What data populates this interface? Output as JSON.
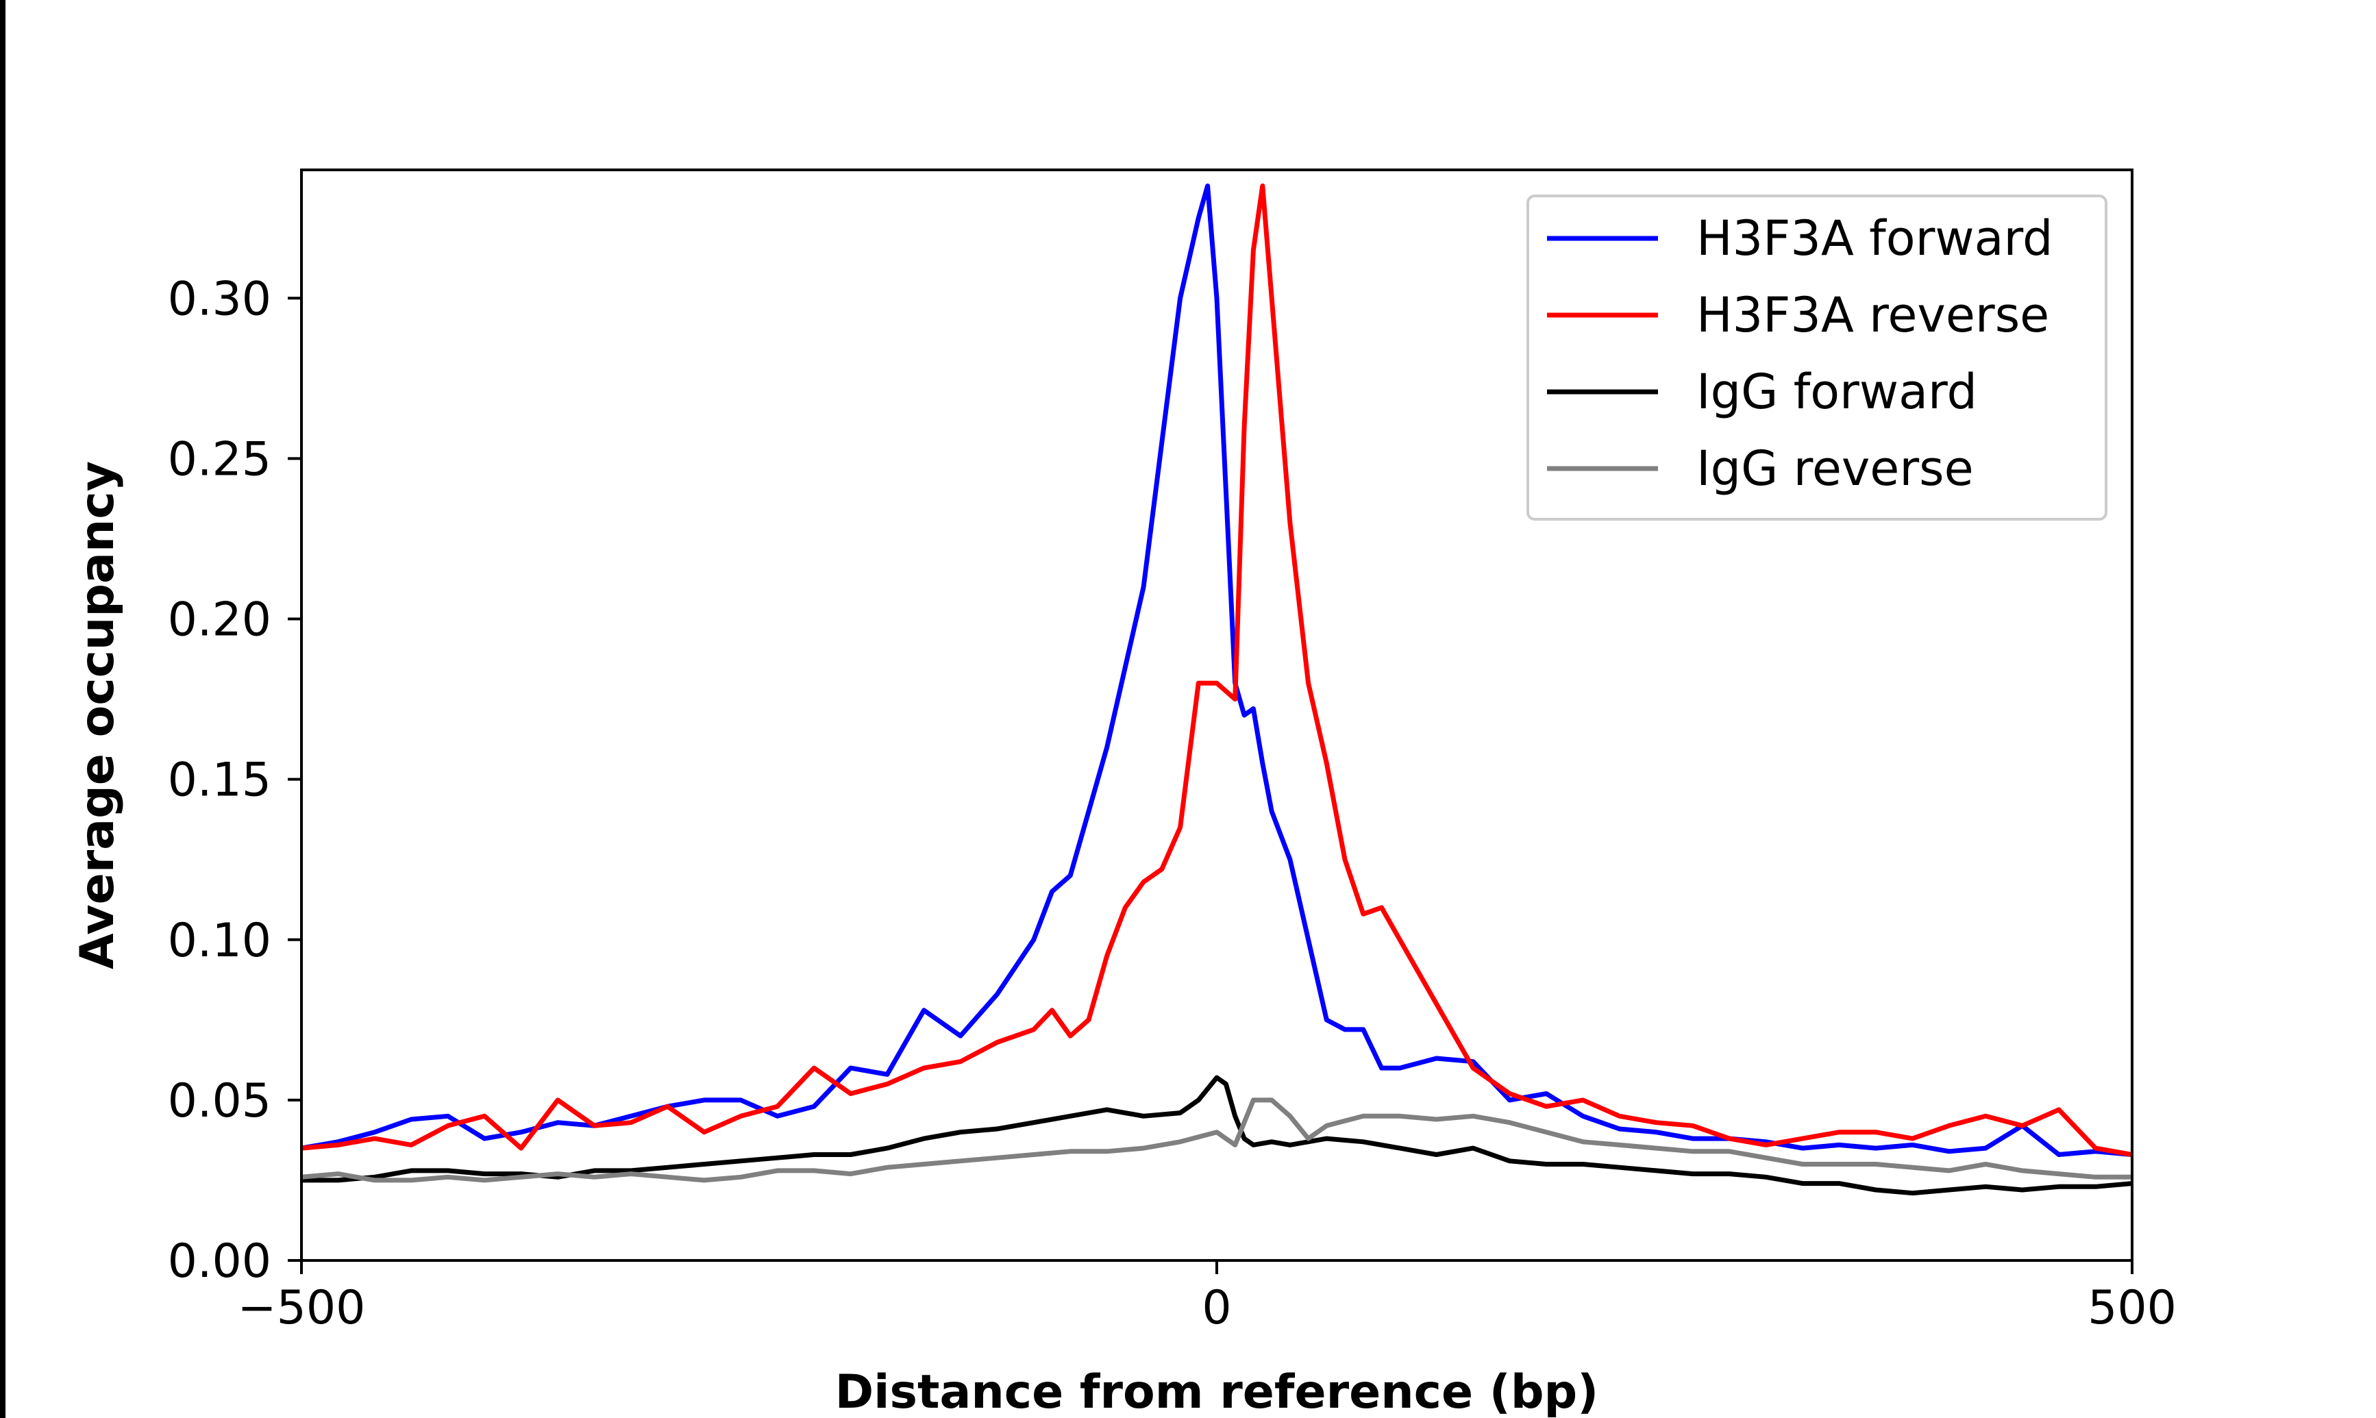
{
  "chart_data": {
    "type": "line",
    "title": "",
    "xlabel": "Distance from reference (bp)",
    "ylabel": "Average occupancy",
    "xlim": [
      -500,
      500
    ],
    "ylim": [
      0,
      0.34
    ],
    "x_ticks": [
      -500,
      0,
      500
    ],
    "x_tick_labels": [
      "−500",
      "0",
      "500"
    ],
    "y_ticks": [
      0,
      0.05,
      0.1,
      0.15,
      0.2,
      0.25,
      0.3
    ],
    "y_tick_labels": [
      "0.00",
      "0.05",
      "0.10",
      "0.15",
      "0.20",
      "0.25",
      "0.30"
    ],
    "grid": false,
    "legend_position": "top-right",
    "series": [
      {
        "name": "H3F3A forward",
        "color": "#0000ff",
        "x": [
          -500,
          -480,
          -460,
          -440,
          -420,
          -400,
          -380,
          -360,
          -340,
          -320,
          -300,
          -280,
          -260,
          -240,
          -220,
          -200,
          -180,
          -160,
          -140,
          -120,
          -100,
          -90,
          -80,
          -70,
          -60,
          -50,
          -40,
          -30,
          -20,
          -10,
          -5,
          0,
          5,
          10,
          15,
          20,
          25,
          30,
          40,
          50,
          60,
          70,
          80,
          90,
          100,
          120,
          140,
          160,
          180,
          200,
          220,
          240,
          260,
          280,
          300,
          320,
          340,
          360,
          380,
          400,
          420,
          440,
          460,
          480,
          500
        ],
        "y": [
          0.035,
          0.037,
          0.04,
          0.044,
          0.045,
          0.038,
          0.04,
          0.043,
          0.042,
          0.045,
          0.048,
          0.05,
          0.05,
          0.045,
          0.048,
          0.06,
          0.058,
          0.078,
          0.07,
          0.083,
          0.1,
          0.115,
          0.12,
          0.14,
          0.16,
          0.185,
          0.21,
          0.255,
          0.3,
          0.325,
          0.335,
          0.3,
          0.24,
          0.18,
          0.17,
          0.172,
          0.155,
          0.14,
          0.125,
          0.1,
          0.075,
          0.072,
          0.072,
          0.06,
          0.06,
          0.063,
          0.062,
          0.05,
          0.052,
          0.045,
          0.041,
          0.04,
          0.038,
          0.038,
          0.037,
          0.035,
          0.036,
          0.035,
          0.036,
          0.034,
          0.035,
          0.042,
          0.033,
          0.034,
          0.033
        ]
      },
      {
        "name": "H3F3A reverse",
        "color": "#ff0000",
        "x": [
          -500,
          -480,
          -460,
          -440,
          -420,
          -400,
          -380,
          -360,
          -340,
          -320,
          -300,
          -280,
          -260,
          -240,
          -220,
          -200,
          -180,
          -160,
          -140,
          -120,
          -100,
          -90,
          -80,
          -70,
          -60,
          -50,
          -40,
          -30,
          -20,
          -10,
          0,
          10,
          15,
          20,
          25,
          30,
          35,
          40,
          50,
          60,
          70,
          80,
          90,
          100,
          110,
          120,
          140,
          160,
          180,
          200,
          220,
          240,
          260,
          280,
          300,
          320,
          340,
          360,
          380,
          400,
          420,
          440,
          460,
          480,
          500
        ],
        "y": [
          0.035,
          0.036,
          0.038,
          0.036,
          0.042,
          0.045,
          0.035,
          0.05,
          0.042,
          0.043,
          0.048,
          0.04,
          0.045,
          0.048,
          0.06,
          0.052,
          0.055,
          0.06,
          0.062,
          0.068,
          0.072,
          0.078,
          0.07,
          0.075,
          0.095,
          0.11,
          0.118,
          0.122,
          0.135,
          0.18,
          0.18,
          0.175,
          0.26,
          0.315,
          0.335,
          0.3,
          0.265,
          0.23,
          0.18,
          0.155,
          0.125,
          0.108,
          0.11,
          0.1,
          0.09,
          0.08,
          0.06,
          0.052,
          0.048,
          0.05,
          0.045,
          0.043,
          0.042,
          0.038,
          0.036,
          0.038,
          0.04,
          0.04,
          0.038,
          0.042,
          0.045,
          0.042,
          0.047,
          0.035,
          0.033
        ]
      },
      {
        "name": "IgG forward",
        "color": "#000000",
        "x": [
          -500,
          -480,
          -460,
          -440,
          -420,
          -400,
          -380,
          -360,
          -340,
          -320,
          -300,
          -280,
          -260,
          -240,
          -220,
          -200,
          -180,
          -160,
          -140,
          -120,
          -100,
          -80,
          -60,
          -40,
          -20,
          -10,
          0,
          5,
          10,
          15,
          20,
          30,
          40,
          60,
          80,
          100,
          120,
          140,
          160,
          180,
          200,
          220,
          240,
          260,
          280,
          300,
          320,
          340,
          360,
          380,
          400,
          420,
          440,
          460,
          480,
          500
        ],
        "y": [
          0.025,
          0.025,
          0.026,
          0.028,
          0.028,
          0.027,
          0.027,
          0.026,
          0.028,
          0.028,
          0.029,
          0.03,
          0.031,
          0.032,
          0.033,
          0.033,
          0.035,
          0.038,
          0.04,
          0.041,
          0.043,
          0.045,
          0.047,
          0.045,
          0.046,
          0.05,
          0.057,
          0.055,
          0.045,
          0.038,
          0.036,
          0.037,
          0.036,
          0.038,
          0.037,
          0.035,
          0.033,
          0.035,
          0.031,
          0.03,
          0.03,
          0.029,
          0.028,
          0.027,
          0.027,
          0.026,
          0.024,
          0.024,
          0.022,
          0.021,
          0.022,
          0.023,
          0.022,
          0.023,
          0.023,
          0.024
        ]
      },
      {
        "name": "IgG reverse",
        "color": "#808080",
        "x": [
          -500,
          -480,
          -460,
          -440,
          -420,
          -400,
          -380,
          -360,
          -340,
          -320,
          -300,
          -280,
          -260,
          -240,
          -220,
          -200,
          -180,
          -160,
          -140,
          -120,
          -100,
          -80,
          -60,
          -40,
          -20,
          0,
          10,
          20,
          30,
          40,
          50,
          60,
          80,
          100,
          120,
          140,
          160,
          180,
          200,
          220,
          240,
          260,
          280,
          300,
          320,
          340,
          360,
          380,
          400,
          420,
          440,
          460,
          480,
          500
        ],
        "y": [
          0.026,
          0.027,
          0.025,
          0.025,
          0.026,
          0.025,
          0.026,
          0.027,
          0.026,
          0.027,
          0.026,
          0.025,
          0.026,
          0.028,
          0.028,
          0.027,
          0.029,
          0.03,
          0.031,
          0.032,
          0.033,
          0.034,
          0.034,
          0.035,
          0.037,
          0.04,
          0.036,
          0.05,
          0.05,
          0.045,
          0.038,
          0.042,
          0.045,
          0.045,
          0.044,
          0.045,
          0.043,
          0.04,
          0.037,
          0.036,
          0.035,
          0.034,
          0.034,
          0.032,
          0.03,
          0.03,
          0.03,
          0.029,
          0.028,
          0.03,
          0.028,
          0.027,
          0.026,
          0.026
        ]
      }
    ]
  }
}
